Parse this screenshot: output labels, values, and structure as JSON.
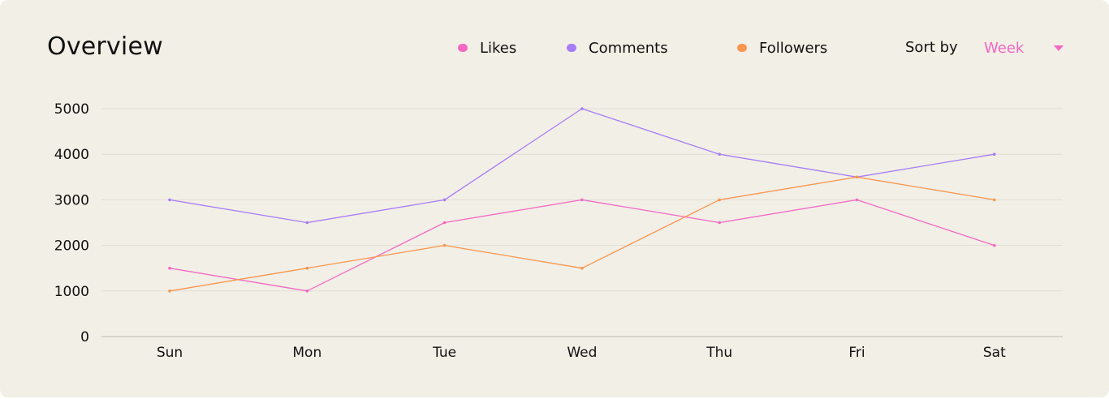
{
  "header": {
    "title": "Overview",
    "sort_label": "Sort by",
    "sort_value": "Week"
  },
  "colors": {
    "background": "#f2efe6",
    "likes": "#f468c4",
    "comments": "#a67cf6",
    "followers": "#f8954f",
    "grid": "#e2ded4",
    "axis": "#bdb9b0",
    "accent": "#f468c4"
  },
  "chart_data": {
    "type": "line",
    "title": "Overview",
    "xlabel": "",
    "ylabel": "",
    "categories": [
      "Sun",
      "Mon",
      "Tue",
      "Wed",
      "Thu",
      "Fri",
      "Sat"
    ],
    "ylim": [
      0,
      5000
    ],
    "yticks": [
      0,
      1000,
      2000,
      3000,
      4000,
      5000
    ],
    "grid": true,
    "legend_position": "top",
    "series": [
      {
        "name": "Likes",
        "color": "#f468c4",
        "values": [
          1500,
          1000,
          2500,
          3000,
          2500,
          3000,
          2000
        ]
      },
      {
        "name": "Comments",
        "color": "#a67cf6",
        "values": [
          3000,
          2500,
          3000,
          5000,
          4000,
          3500,
          4000
        ]
      },
      {
        "name": "Followers",
        "color": "#f8954f",
        "values": [
          1000,
          1500,
          2000,
          1500,
          3000,
          3500,
          3000
        ]
      }
    ]
  }
}
